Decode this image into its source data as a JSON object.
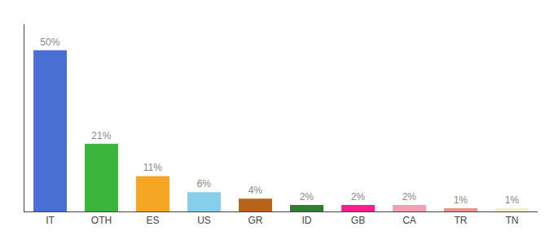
{
  "chart_data": {
    "type": "bar",
    "categories": [
      "IT",
      "OTH",
      "ES",
      "US",
      "GR",
      "ID",
      "GB",
      "CA",
      "TR",
      "TN"
    ],
    "values": [
      50,
      21,
      11,
      6,
      4,
      2,
      2,
      2,
      1,
      1
    ],
    "value_labels": [
      "50%",
      "21%",
      "11%",
      "6%",
      "4%",
      "2%",
      "2%",
      "2%",
      "1%",
      "1%"
    ],
    "data_labels": true,
    "colors": [
      "#4a6fd4",
      "#3cb53c",
      "#f5a623",
      "#87ceeb",
      "#b8621a",
      "#2d7d32",
      "#ff1d8e",
      "#f4a0b0",
      "#e8948a",
      "#f0f0d0"
    ],
    "ylim": [
      0,
      58
    ],
    "grid": false,
    "tick_labels": "x"
  }
}
